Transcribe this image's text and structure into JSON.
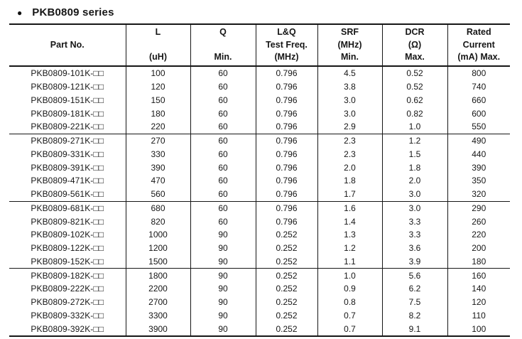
{
  "title": {
    "bullet": "●",
    "text": "PKB0809 series"
  },
  "table": {
    "headers": [
      {
        "name": "part-no",
        "lines": [
          "Part No."
        ]
      },
      {
        "name": "l",
        "lines": [
          "L",
          "(uH)"
        ]
      },
      {
        "name": "q",
        "lines": [
          "Q",
          "Min."
        ]
      },
      {
        "name": "lq-test-freq",
        "lines": [
          "L&Q",
          "Test Freq.",
          "(MHz)"
        ]
      },
      {
        "name": "srf",
        "lines": [
          "SRF",
          "(MHz)",
          "Min."
        ]
      },
      {
        "name": "dcr",
        "lines": [
          "DCR",
          "(Ω)",
          "Max."
        ]
      },
      {
        "name": "rated-current",
        "lines": [
          "Rated",
          "Current",
          "(mA) Max."
        ]
      }
    ],
    "rows": [
      [
        "PKB0809-101K-□□",
        "100",
        "60",
        "0.796",
        "4.5",
        "0.52",
        "800"
      ],
      [
        "PKB0809-121K-□□",
        "120",
        "60",
        "0.796",
        "3.8",
        "0.52",
        "740"
      ],
      [
        "PKB0809-151K-□□",
        "150",
        "60",
        "0.796",
        "3.0",
        "0.62",
        "660"
      ],
      [
        "PKB0809-181K-□□",
        "180",
        "60",
        "0.796",
        "3.0",
        "0.82",
        "600"
      ],
      [
        "PKB0809-221K-□□",
        "220",
        "60",
        "0.796",
        "2.9",
        "1.0",
        "550"
      ],
      [
        "PKB0809-271K-□□",
        "270",
        "60",
        "0.796",
        "2.3",
        "1.2",
        "490"
      ],
      [
        "PKB0809-331K-□□",
        "330",
        "60",
        "0.796",
        "2.3",
        "1.5",
        "440"
      ],
      [
        "PKB0809-391K-□□",
        "390",
        "60",
        "0.796",
        "2.0",
        "1.8",
        "390"
      ],
      [
        "PKB0809-471K-□□",
        "470",
        "60",
        "0.796",
        "1.8",
        "2.0",
        "350"
      ],
      [
        "PKB0809-561K-□□",
        "560",
        "60",
        "0.796",
        "1.7",
        "3.0",
        "320"
      ],
      [
        "PKB0809-681K-□□",
        "680",
        "60",
        "0.796",
        "1.6",
        "3.0",
        "290"
      ],
      [
        "PKB0809-821K-□□",
        "820",
        "60",
        "0.796",
        "1.4",
        "3.3",
        "260"
      ],
      [
        "PKB0809-102K-□□",
        "1000",
        "90",
        "0.252",
        "1.3",
        "3.3",
        "220"
      ],
      [
        "PKB0809-122K-□□",
        "1200",
        "90",
        "0.252",
        "1.2",
        "3.6",
        "200"
      ],
      [
        "PKB0809-152K-□□",
        "1500",
        "90",
        "0.252",
        "1.1",
        "3.9",
        "180"
      ],
      [
        "PKB0809-182K-□□",
        "1800",
        "90",
        "0.252",
        "1.0",
        "5.6",
        "160"
      ],
      [
        "PKB0809-222K-□□",
        "2200",
        "90",
        "0.252",
        "0.9",
        "6.2",
        "140"
      ],
      [
        "PKB0809-272K-□□",
        "2700",
        "90",
        "0.252",
        "0.8",
        "7.5",
        "120"
      ],
      [
        "PKB0809-332K-□□",
        "3300",
        "90",
        "0.252",
        "0.7",
        "8.2",
        "110"
      ],
      [
        "PKB0809-392K-□□",
        "3900",
        "90",
        "0.252",
        "0.7",
        "9.1",
        "100"
      ]
    ],
    "group_breaks_after_row": [
      5,
      10,
      15
    ],
    "text_color": "#161616",
    "background_color": "#ffffff"
  }
}
